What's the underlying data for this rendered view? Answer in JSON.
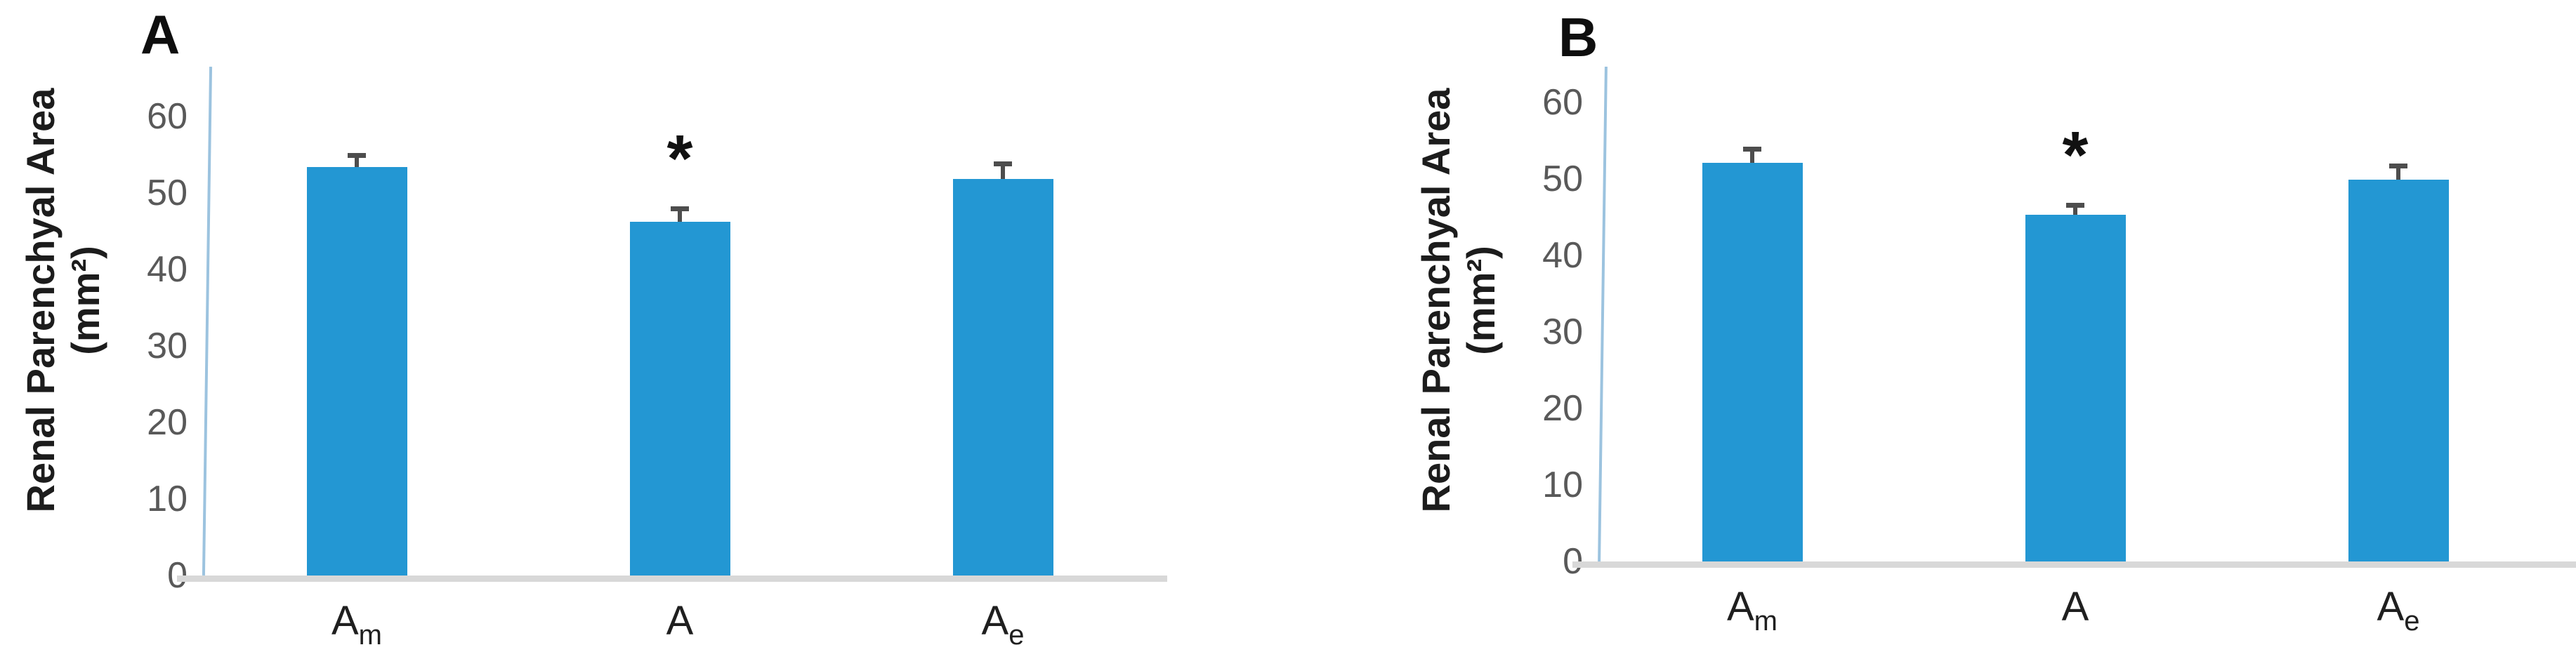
{
  "figure": {
    "background": "#ffffff",
    "panel_count": 2
  },
  "colors": {
    "bar": "#2397d3",
    "error_bar": "#4d4d4d",
    "tick_label": "#595959",
    "y_axis_line": "#9cc3df",
    "x_axis_line": "#d8d8d8",
    "category_label": "#1f1f1f",
    "panel_letter": "#0e0e0e",
    "asterisk": "#111111"
  },
  "chart_data": [
    {
      "type": "bar",
      "panel_label": "A",
      "title": "",
      "ylabel_line1": "Renal Parenchyal Area",
      "ylabel_line2": "(mm²)",
      "xlabel": "",
      "yticks": [
        0,
        10,
        20,
        30,
        40,
        50,
        60
      ],
      "ylim": [
        0,
        66
      ],
      "grid": false,
      "legend": null,
      "categories": [
        "Am",
        "A",
        "Ae"
      ],
      "categories_rich": [
        {
          "base": "A",
          "sub": "m"
        },
        {
          "base": "A",
          "sub": ""
        },
        {
          "base": "A",
          "sub": "e"
        }
      ],
      "values": [
        53.4,
        46.2,
        51.8
      ],
      "errors_plus": [
        1.8,
        2.1,
        2.3
      ],
      "significance": [
        "",
        "*",
        ""
      ]
    },
    {
      "type": "bar",
      "panel_label": "B",
      "title": "",
      "ylabel_line1": "Renal Parenchyal Area",
      "ylabel_line2": "(mm²)",
      "xlabel": "",
      "yticks": [
        0,
        10,
        20,
        30,
        40,
        50,
        60
      ],
      "ylim": [
        0,
        66
      ],
      "grid": false,
      "legend": null,
      "categories": [
        "Am",
        "A",
        "Ae"
      ],
      "categories_rich": [
        {
          "base": "A",
          "sub": "m"
        },
        {
          "base": "A",
          "sub": ""
        },
        {
          "base": "A",
          "sub": "e"
        }
      ],
      "values": [
        52.1,
        45.3,
        49.9
      ],
      "errors_plus": [
        2.1,
        1.6,
        2.1
      ],
      "significance": [
        "",
        "*",
        ""
      ]
    }
  ]
}
